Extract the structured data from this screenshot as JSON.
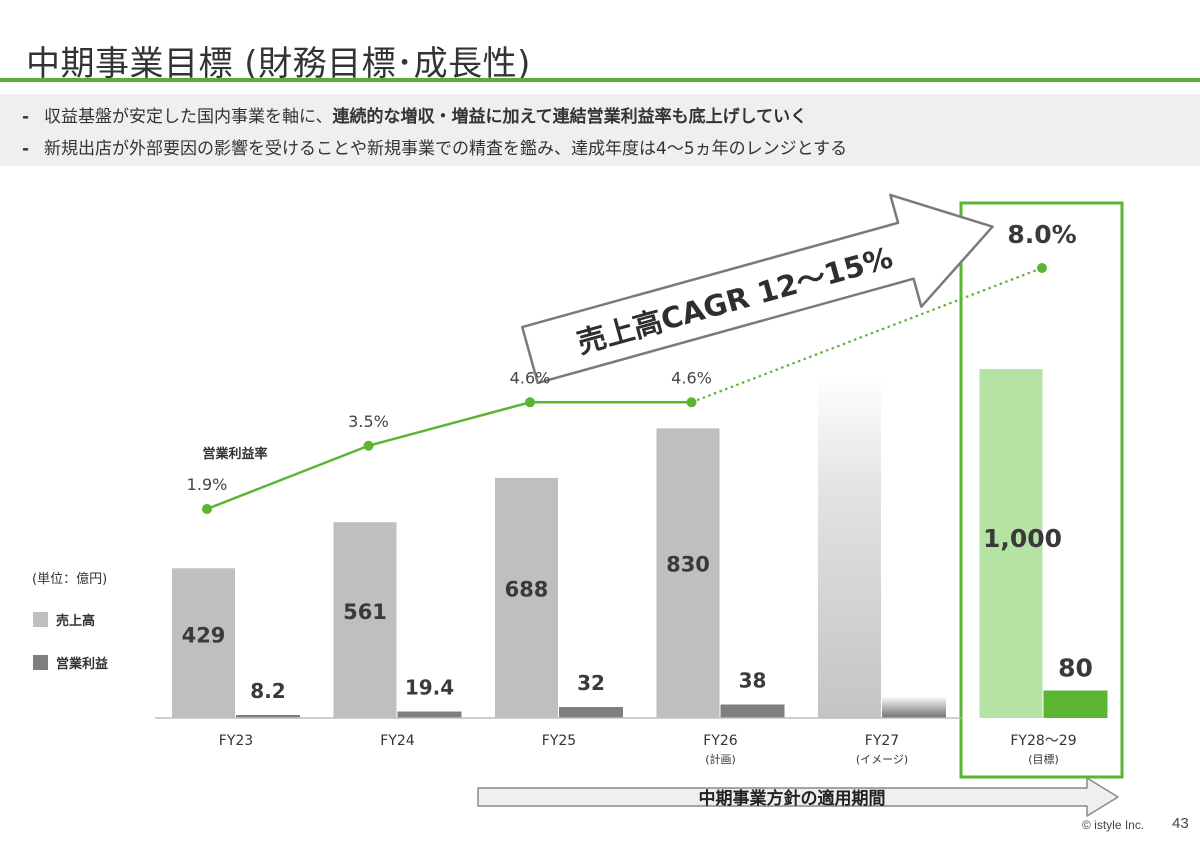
{
  "slide": {
    "title": "中期事業目標 (財務目標･成長性)",
    "bullets": [
      {
        "dash": "-",
        "text": "収益基盤が安定した国内事業を軸に、",
        "bold": "連続的な増収・増益に加えて連結営業利益率も底上げしていく"
      },
      {
        "dash": "-",
        "text": "新規出店が外部要因の影響を受けることや新規事業での精査を鑑み、達成年度は4～5ヵ年のレンジとする",
        "bold": ""
      }
    ],
    "copyright": "© istyle Inc.",
    "page_number": "43"
  },
  "chart_data": {
    "type": "bar",
    "unit_label": "(単位：億円)",
    "categories": [
      "FY23",
      "FY24",
      "FY25",
      "FY26",
      "FY27",
      "FY28～29"
    ],
    "category_sublabels": [
      "",
      "",
      "",
      "(計画)",
      "(イメージ)",
      "(目標)"
    ],
    "series": [
      {
        "name": "売上高",
        "values": [
          429,
          561,
          688,
          830,
          null,
          1000
        ],
        "labels": [
          "429",
          "561",
          "688",
          "830",
          "",
          "1,000"
        ],
        "color": "#bfbfbf",
        "highlight_color": "#b5e3a3"
      },
      {
        "name": "営業利益",
        "values": [
          8.2,
          19.4,
          32,
          38,
          null,
          80
        ],
        "labels": [
          "8.2",
          "19.4",
          "32",
          "38",
          "",
          "80"
        ],
        "color": "#7f7f7f",
        "highlight_color": "#5ab532"
      }
    ],
    "line_series": {
      "name": "営業利益率",
      "values": [
        1.9,
        3.5,
        4.6,
        4.6,
        null,
        8.0
      ],
      "labels": [
        "1.9%",
        "3.5%",
        "4.6%",
        "4.6%",
        "",
        "8.0%"
      ],
      "color": "#5ab532"
    },
    "annotations": {
      "cagr_arrow": "売上高CAGR 12～15%",
      "period_arrow": "中期事業方針の適用期間"
    },
    "highlight_category": "FY28～29",
    "ylim": [
      0,
      1000
    ]
  }
}
